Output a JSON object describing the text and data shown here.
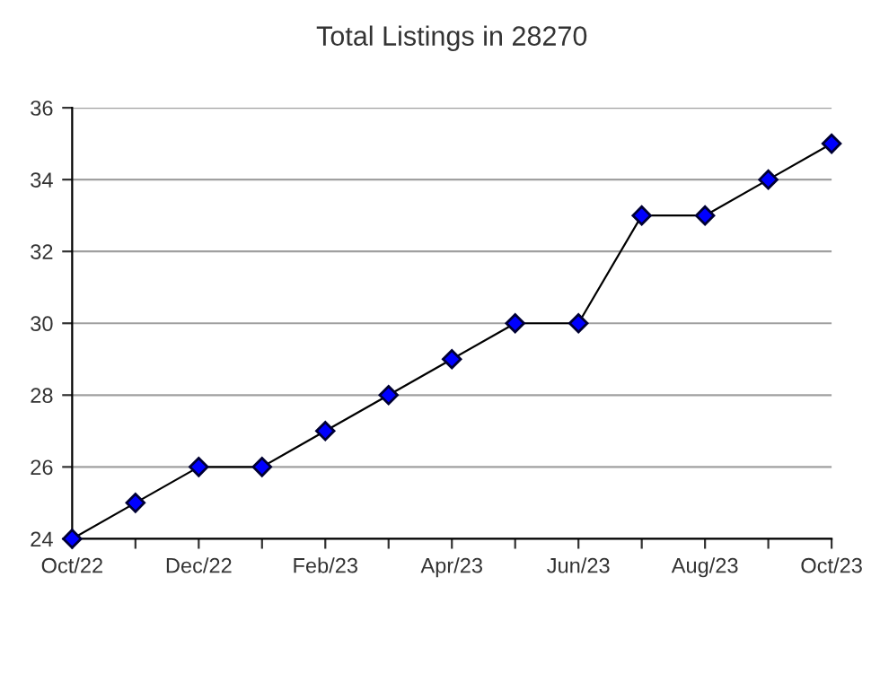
{
  "chart_data": {
    "type": "line",
    "title": "Total Listings in 28270",
    "categories": [
      "Oct/22",
      null,
      "Dec/22",
      null,
      "Feb/23",
      null,
      "Apr/23",
      null,
      "Jun/23",
      null,
      "Aug/23",
      null,
      "Oct/23"
    ],
    "series": [
      {
        "color": "#0000ff",
        "values": [
          24,
          25,
          26,
          26,
          27,
          28,
          29,
          30,
          30,
          33,
          33,
          34,
          35
        ]
      }
    ],
    "ylim": [
      24,
      36
    ],
    "yticks": [
      24,
      26,
      28,
      30,
      32,
      34,
      36
    ],
    "grid": "y",
    "marker": "diamond",
    "line_style": "solid",
    "legend": false
  }
}
